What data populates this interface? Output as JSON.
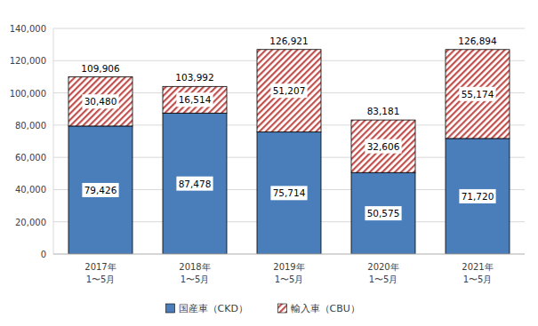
{
  "chart_data": {
    "type": "bar",
    "stacked": true,
    "data_labels": true,
    "grid": true,
    "legend": "bottom",
    "categories": [
      "2017年\n1〜5月",
      "2018年\n1〜5月",
      "2019年\n1〜5月",
      "2020年\n1〜5月",
      "2021年\n1〜5月"
    ],
    "series": [
      {
        "name": "国産車（CKD）",
        "color": "#4a7ebb",
        "values": [
          79426,
          87478,
          75714,
          50575,
          71720
        ],
        "value_labels": [
          "79,426",
          "87,478",
          "75,714",
          "50,575",
          "71,720"
        ]
      },
      {
        "name": "輸入車（CBU）",
        "color": "#c0504d",
        "values": [
          30480,
          16514,
          51207,
          32606,
          55174
        ],
        "value_labels": [
          "30,480",
          "16,514",
          "51,207",
          "32,606",
          "55,174"
        ]
      }
    ],
    "totals": [
      109906,
      103992,
      126921,
      83181,
      126894
    ],
    "total_labels": [
      "109,906",
      "103,992",
      "126,921",
      "83,181",
      "126,894"
    ],
    "ylim": [
      0,
      140000
    ],
    "yticks": [
      0,
      {
        "value": 20000,
        "label": "20,000"
      },
      {
        "value": 40000,
        "label": "40,000"
      },
      {
        "value": 60000,
        "label": "60,000"
      },
      {
        "value": 80000,
        "label": "80,000"
      },
      {
        "value": 100000,
        "label": "100,000"
      },
      {
        "value": 120000,
        "label": "120,000"
      },
      {
        "value": 140000,
        "label": "140,000"
      }
    ]
  }
}
